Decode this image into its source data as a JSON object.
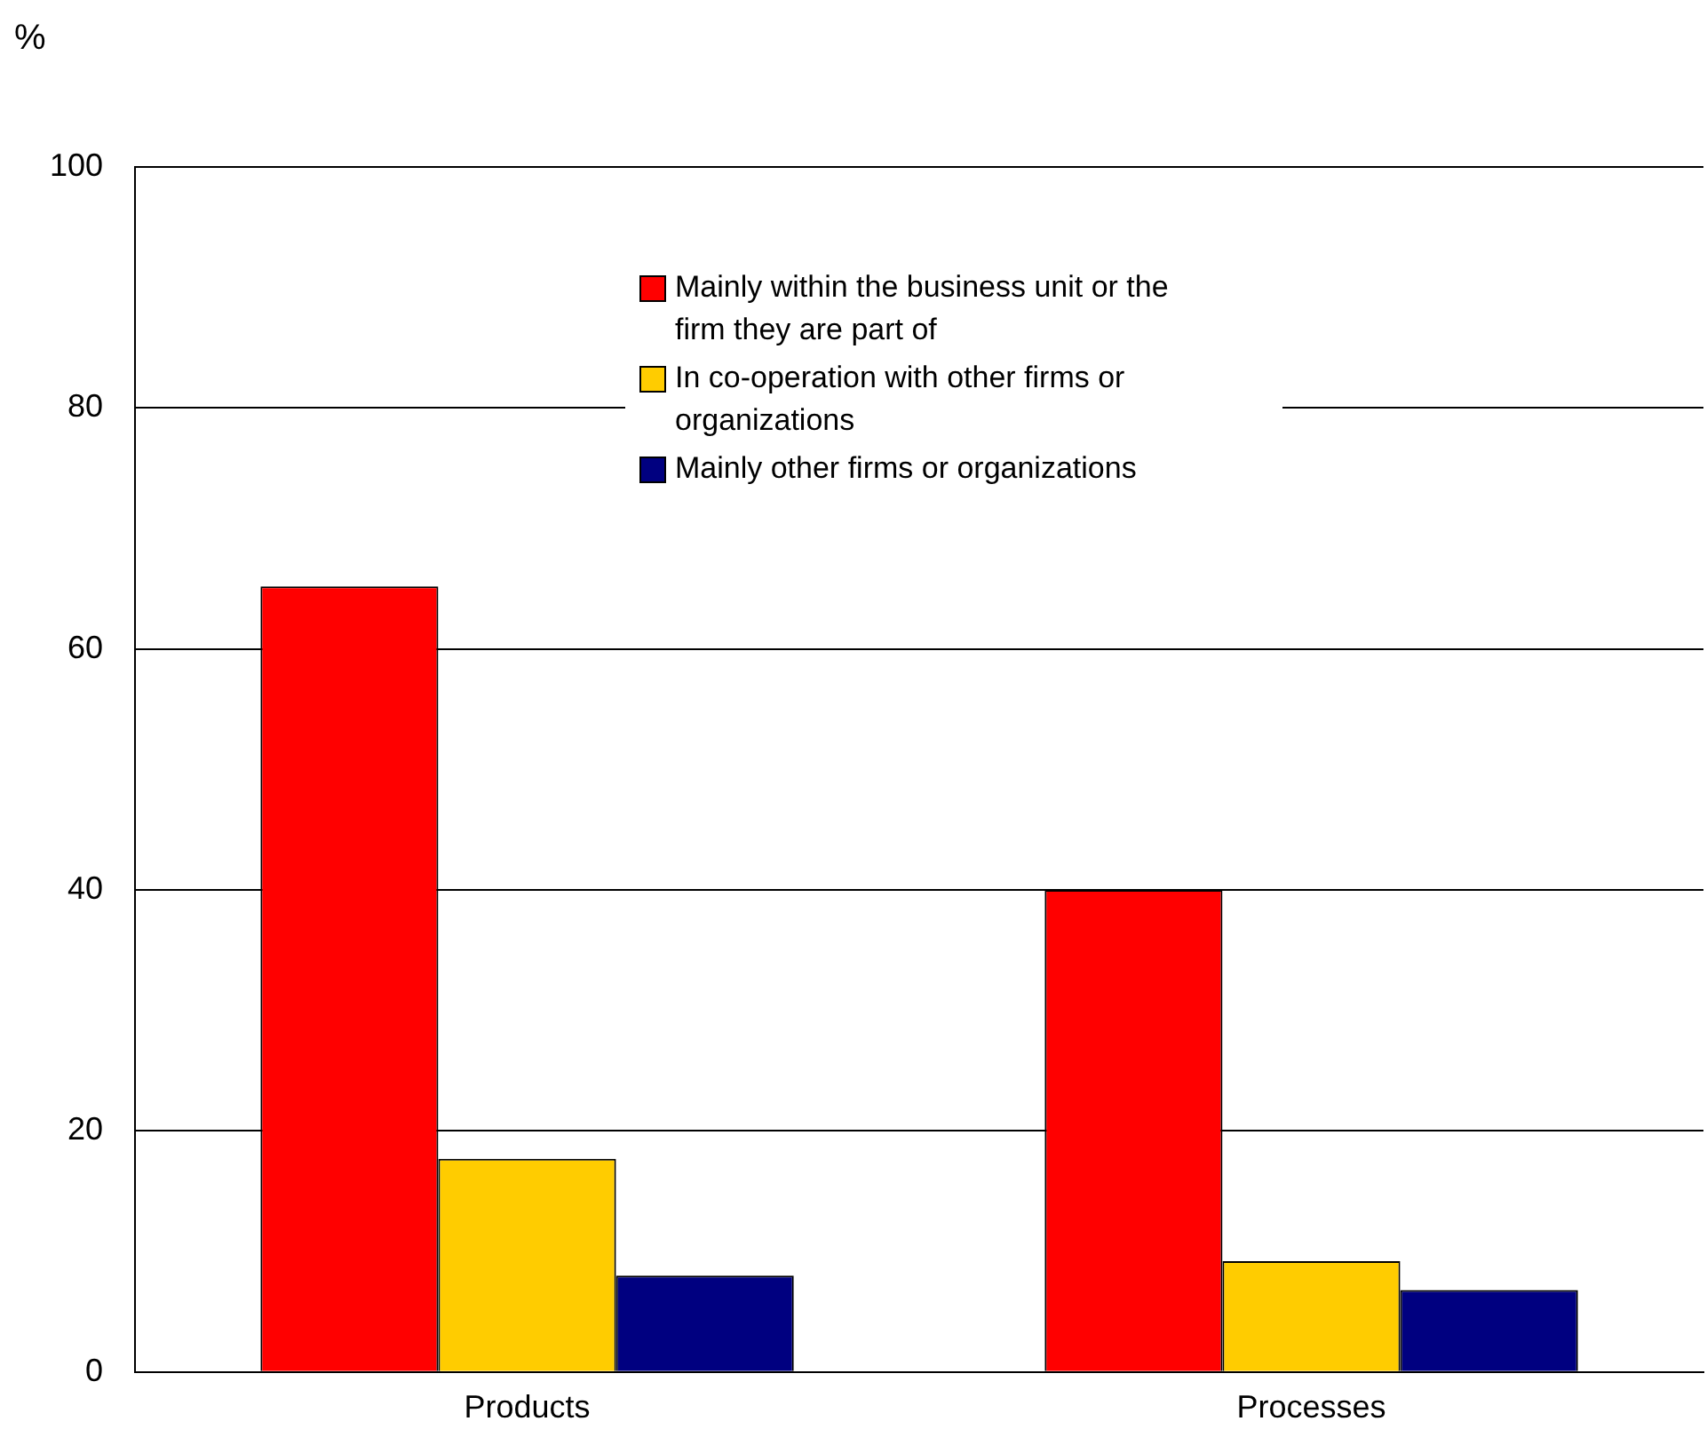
{
  "chart_data": {
    "type": "bar",
    "ylabel": "%",
    "categories": [
      "Products",
      "Processes"
    ],
    "series": [
      {
        "name": "Mainly within the business unit or the firm they are part of",
        "color": "#ff0000",
        "values": [
          65.2,
          40
        ]
      },
      {
        "name": "In co-operation with other firms or organizations",
        "color": "#ffcc00",
        "values": [
          17.7,
          9.2
        ]
      },
      {
        "name": "Mainly other firms or organizations",
        "color": "#000080",
        "values": [
          8,
          6.8
        ]
      }
    ],
    "ylim": [
      0,
      100
    ],
    "yticks": [
      0,
      20,
      40,
      60,
      80,
      100
    ],
    "grid": "y",
    "legend": "top"
  }
}
